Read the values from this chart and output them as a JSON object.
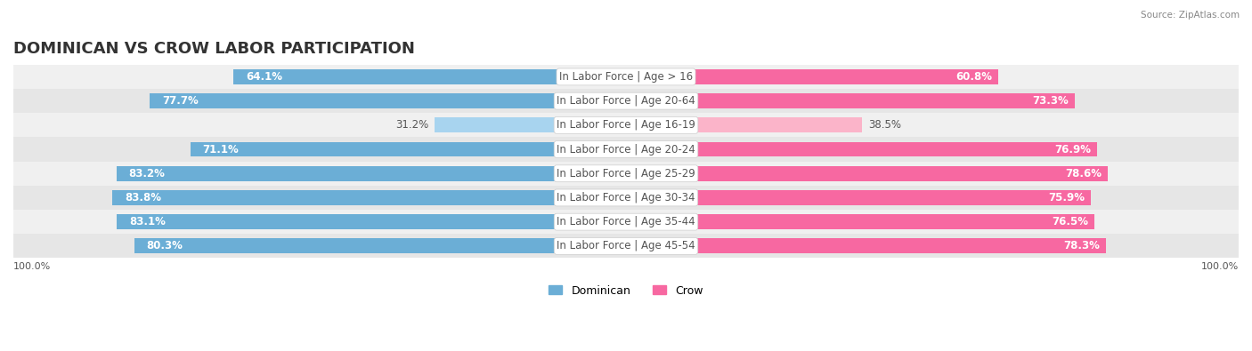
{
  "title": "DOMINICAN VS CROW LABOR PARTICIPATION",
  "source": "Source: ZipAtlas.com",
  "categories": [
    "In Labor Force | Age > 16",
    "In Labor Force | Age 20-64",
    "In Labor Force | Age 16-19",
    "In Labor Force | Age 20-24",
    "In Labor Force | Age 25-29",
    "In Labor Force | Age 30-34",
    "In Labor Force | Age 35-44",
    "In Labor Force | Age 45-54"
  ],
  "dominican_values": [
    64.1,
    77.7,
    31.2,
    71.1,
    83.2,
    83.8,
    83.1,
    80.3
  ],
  "crow_values": [
    60.8,
    73.3,
    38.5,
    76.9,
    78.6,
    75.9,
    76.5,
    78.3
  ],
  "dominican_color": "#6baed6",
  "crow_color": "#f768a1",
  "dominican_color_light": "#a8d4ef",
  "crow_color_light": "#fbb4c9",
  "bg_color": "#ffffff",
  "row_bg_colors": [
    "#f0f0f0",
    "#e6e6e6"
  ],
  "max_value": 100.0,
  "title_fontsize": 13,
  "label_fontsize": 8.5,
  "value_fontsize": 8.5,
  "legend_fontsize": 9,
  "axis_label_fontsize": 8,
  "center_label_color": "#555555"
}
